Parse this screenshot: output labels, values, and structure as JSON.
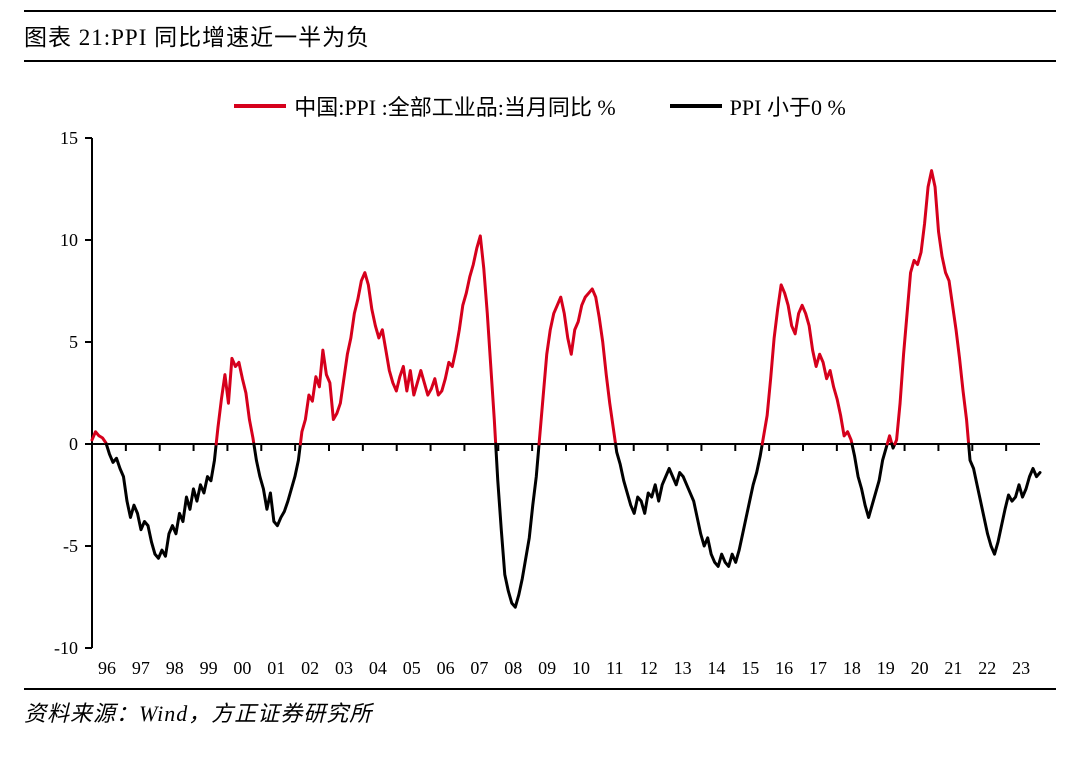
{
  "title": "图表 21:PPI 同比增速近一半为负",
  "source": "资料来源：Wind，方正证券研究所",
  "legend": {
    "series1": {
      "label": "中国:PPI :全部工业品:当月同比 %",
      "color": "#d6001c"
    },
    "series2": {
      "label": "PPI 小于0 %",
      "color": "#000000"
    }
  },
  "chart": {
    "type": "line",
    "background_color": "#ffffff",
    "axis_color": "#000000",
    "axis_width": 2,
    "line_width": 3,
    "label_fontsize": 18,
    "ylim": [
      -10,
      15
    ],
    "yticks": [
      -10,
      -5,
      0,
      5,
      10,
      15
    ],
    "xticks": [
      "96",
      "97",
      "98",
      "99",
      "00",
      "01",
      "02",
      "03",
      "04",
      "05",
      "06",
      "07",
      "08",
      "09",
      "10",
      "11",
      "12",
      "13",
      "14",
      "15",
      "16",
      "17",
      "18",
      "19",
      "20",
      "21",
      "22",
      "23"
    ],
    "x_start": 1996.0,
    "x_end": 2024.0,
    "values": [
      0.2,
      0.6,
      0.4,
      0.3,
      0.05,
      -0.5,
      -0.9,
      -0.7,
      -1.2,
      -1.6,
      -2.8,
      -3.6,
      -3.0,
      -3.4,
      -4.2,
      -3.8,
      -4.0,
      -4.8,
      -5.4,
      -5.6,
      -5.2,
      -5.5,
      -4.4,
      -4.0,
      -4.4,
      -3.4,
      -3.8,
      -2.6,
      -3.2,
      -2.2,
      -2.8,
      -2.0,
      -2.4,
      -1.6,
      -1.8,
      -0.8,
      0.8,
      2.2,
      3.4,
      2.0,
      4.2,
      3.8,
      4.0,
      3.2,
      2.5,
      1.2,
      0.3,
      -0.8,
      -1.6,
      -2.2,
      -3.2,
      -2.4,
      -3.8,
      -4.0,
      -3.6,
      -3.3,
      -2.8,
      -2.2,
      -1.6,
      -0.8,
      0.6,
      1.2,
      2.4,
      2.1,
      3.3,
      2.8,
      4.6,
      3.4,
      3.0,
      1.2,
      1.5,
      2.0,
      3.2,
      4.4,
      5.2,
      6.4,
      7.1,
      8.0,
      8.4,
      7.8,
      6.6,
      5.8,
      5.2,
      5.6,
      4.6,
      3.6,
      3.0,
      2.6,
      3.3,
      3.8,
      2.6,
      3.6,
      2.4,
      3.0,
      3.6,
      3.0,
      2.4,
      2.7,
      3.2,
      2.4,
      2.6,
      3.2,
      4.0,
      3.8,
      4.6,
      5.6,
      6.8,
      7.4,
      8.2,
      8.8,
      9.6,
      10.2,
      8.6,
      6.4,
      3.8,
      1.2,
      -1.8,
      -4.2,
      -6.4,
      -7.2,
      -7.8,
      -8.0,
      -7.4,
      -6.6,
      -5.6,
      -4.6,
      -3.0,
      -1.6,
      0.4,
      2.4,
      4.4,
      5.6,
      6.4,
      6.8,
      7.2,
      6.4,
      5.2,
      4.4,
      5.6,
      6.0,
      6.8,
      7.2,
      7.4,
      7.6,
      7.2,
      6.2,
      5.0,
      3.4,
      2.0,
      0.8,
      -0.4,
      -1.0,
      -1.8,
      -2.4,
      -3.0,
      -3.4,
      -2.6,
      -2.8,
      -3.4,
      -2.4,
      -2.6,
      -2.0,
      -2.8,
      -2.0,
      -1.6,
      -1.2,
      -1.6,
      -2.0,
      -1.4,
      -1.6,
      -2.0,
      -2.4,
      -2.8,
      -3.6,
      -4.4,
      -5.0,
      -4.6,
      -5.4,
      -5.8,
      -6.0,
      -5.4,
      -5.8,
      -6.0,
      -5.4,
      -5.8,
      -5.2,
      -4.4,
      -3.6,
      -2.8,
      -2.0,
      -1.4,
      -0.6,
      0.4,
      1.4,
      3.2,
      5.2,
      6.6,
      7.8,
      7.4,
      6.8,
      5.8,
      5.4,
      6.4,
      6.8,
      6.4,
      5.8,
      4.6,
      3.8,
      4.4,
      4.0,
      3.2,
      3.6,
      2.8,
      2.2,
      1.4,
      0.4,
      0.6,
      0.2,
      -0.6,
      -1.6,
      -2.2,
      -3.0,
      -3.6,
      -3.0,
      -2.4,
      -1.8,
      -0.8,
      -0.2,
      0.4,
      -0.2,
      0.2,
      2.0,
      4.4,
      6.4,
      8.4,
      9.0,
      8.8,
      9.4,
      10.8,
      12.6,
      13.4,
      12.6,
      10.4,
      9.2,
      8.4,
      8.0,
      6.8,
      5.6,
      4.2,
      2.6,
      1.2,
      -0.8,
      -1.2,
      -2.0,
      -2.8,
      -3.6,
      -4.4,
      -5.0,
      -5.4,
      -4.8,
      -4.0,
      -3.2,
      -2.5,
      -2.8,
      -2.6,
      -2.0,
      -2.6,
      -2.2,
      -1.6,
      -1.2,
      -1.6,
      -1.4
    ]
  }
}
